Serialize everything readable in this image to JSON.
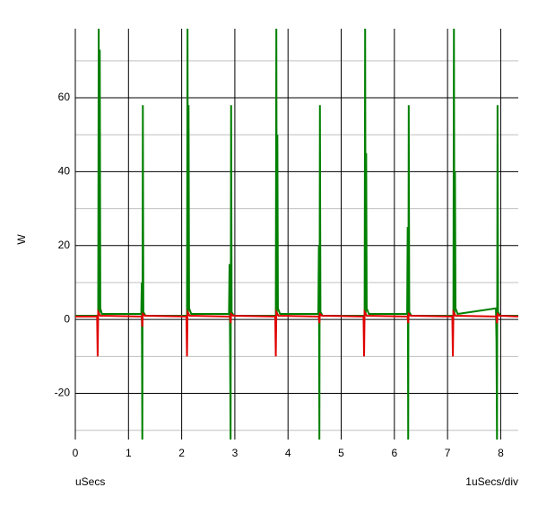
{
  "chart_data": {
    "type": "line",
    "y_label": "W",
    "x_label": "uSecs",
    "x_scale_label": "1uSecs/div",
    "xlim": [
      0,
      8.33
    ],
    "xticks": [
      0,
      1,
      2,
      3,
      4,
      5,
      6,
      7,
      8
    ],
    "ylim": [
      -32.5,
      78.7
    ],
    "yticks": [
      -20,
      0,
      20,
      40,
      60
    ],
    "y_minor_ticks": [
      -30,
      -10,
      10,
      30,
      50,
      70
    ],
    "grid": true,
    "series": [
      {
        "color": "#008000",
        "x": [
          0,
          0.43,
          0.44,
          0.45,
          0.46,
          0.47,
          0.5,
          1.24,
          1.25,
          1.26,
          1.27,
          1.28,
          1.32,
          2.1,
          2.11,
          2.12,
          2.13,
          2.14,
          2.18,
          2.89,
          2.9,
          2.91,
          2.92,
          2.93,
          2.94,
          2.98,
          3.77,
          3.78,
          3.79,
          3.8,
          3.81,
          3.85,
          4.57,
          4.58,
          4.59,
          4.6,
          4.61,
          4.65,
          5.44,
          5.45,
          5.46,
          5.47,
          5.48,
          5.52,
          6.24,
          6.25,
          6.26,
          6.27,
          6.28,
          6.32,
          7.11,
          7.12,
          7.13,
          7.14,
          7.15,
          7.19,
          7.91,
          7.92,
          7.93,
          7.94,
          7.95,
          7.99,
          8.33
        ],
        "values": [
          1,
          1,
          80,
          1,
          73,
          3,
          1.5,
          1.5,
          10,
          -33,
          58,
          2,
          1,
          1,
          80,
          1,
          58,
          3,
          1.5,
          1.5,
          15,
          -6,
          -33,
          58,
          2,
          1,
          1,
          80,
          1,
          50,
          3,
          1.5,
          1.5,
          20,
          -33,
          58,
          2,
          1,
          1,
          80,
          1,
          45,
          3,
          1.5,
          1.5,
          25,
          -33,
          58,
          2,
          1,
          1,
          80,
          1,
          40,
          3,
          1.5,
          3,
          -6,
          -33,
          58,
          2,
          1,
          1
        ]
      },
      {
        "color": "#e00000",
        "x": [
          0,
          0.41,
          0.42,
          0.43,
          0.47,
          1.25,
          1.26,
          1.27,
          1.31,
          2.09,
          2.1,
          2.11,
          2.15,
          2.91,
          2.92,
          2.93,
          2.97,
          3.76,
          3.77,
          3.78,
          3.82,
          4.58,
          4.59,
          4.6,
          4.64,
          5.42,
          5.43,
          5.44,
          5.48,
          6.25,
          6.26,
          6.27,
          6.31,
          7.09,
          7.1,
          7.11,
          7.15,
          7.92,
          7.93,
          7.94,
          7.98,
          8.33
        ],
        "values": [
          0.8,
          0.8,
          -10,
          2,
          1,
          0.8,
          -2,
          1.5,
          1,
          0.8,
          -10,
          2,
          1,
          0.8,
          -1,
          1.5,
          1,
          0.8,
          -10,
          2,
          1,
          0.8,
          -1,
          1.5,
          1,
          0.8,
          -10,
          2,
          1,
          0.8,
          -1,
          1.5,
          1,
          0.8,
          -10,
          2,
          1,
          0.8,
          -1,
          1.5,
          1,
          0.8
        ]
      }
    ]
  }
}
